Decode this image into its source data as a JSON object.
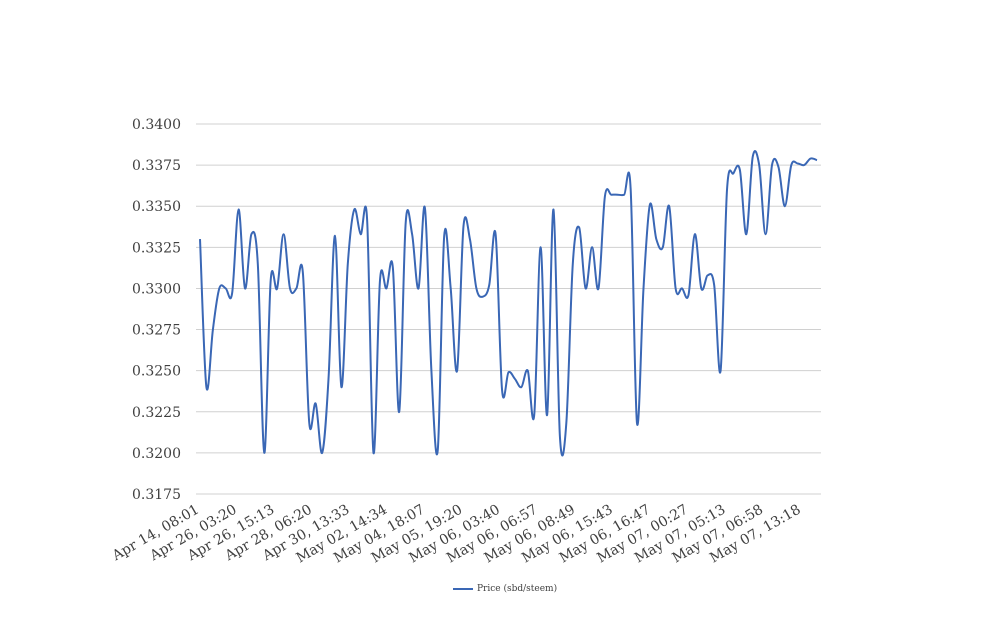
{
  "chart_data": {
    "type": "line",
    "title": "",
    "xlabel": "",
    "ylabel": "",
    "ylim": [
      0.3175,
      0.34
    ],
    "y_ticks": [
      "0.3175",
      "0.3200",
      "0.3225",
      "0.3250",
      "0.3275",
      "0.3300",
      "0.3325",
      "0.3350",
      "0.3375",
      "0.3400"
    ],
    "x_tick_labels": [
      "Apr 14, 08:01",
      "Apr 26, 03:20",
      "Apr 26, 15:13",
      "Apr 28, 06:20",
      "Apr 30, 13:33",
      "May 02, 14:34",
      "May 04, 18:07",
      "May 05, 19:20",
      "May 06, 03:40",
      "May 06, 06:57",
      "May 06, 08:49",
      "May 06, 15:43",
      "May 06, 16:47",
      "May 07, 00:27",
      "May 07, 05:13",
      "May 07, 06:58",
      "May 07, 13:18"
    ],
    "grid": true,
    "legend_position": "bottom",
    "series": [
      {
        "name": "Price (sbd/steem)",
        "color": "#3a67b5",
        "values": [
          0.333,
          0.324,
          0.3275,
          0.33,
          0.33,
          0.3297,
          0.3348,
          0.33,
          0.3333,
          0.3315,
          0.32,
          0.3305,
          0.33,
          0.3333,
          0.33,
          0.33,
          0.331,
          0.3218,
          0.323,
          0.32,
          0.3245,
          0.3332,
          0.324,
          0.3315,
          0.3348,
          0.3333,
          0.3342,
          0.32,
          0.3305,
          0.33,
          0.3313,
          0.3225,
          0.334,
          0.3333,
          0.33,
          0.3349,
          0.325,
          0.3202,
          0.3332,
          0.33,
          0.325,
          0.3338,
          0.333,
          0.33,
          0.3295,
          0.3302,
          0.3333,
          0.3238,
          0.3249,
          0.3245,
          0.324,
          0.325,
          0.3223,
          0.3325,
          0.3223,
          0.3348,
          0.321,
          0.3218,
          0.3315,
          0.3337,
          0.33,
          0.3325,
          0.33,
          0.3356,
          0.3357,
          0.3357,
          0.3357,
          0.3361,
          0.3218,
          0.33,
          0.3351,
          0.333,
          0.3325,
          0.335,
          0.33,
          0.33,
          0.3296,
          0.3333,
          0.33,
          0.3308,
          0.3302,
          0.325,
          0.336,
          0.337,
          0.3372,
          0.3333,
          0.338,
          0.3375,
          0.3333,
          0.3375,
          0.3374,
          0.335,
          0.3375,
          0.3376,
          0.3375,
          0.3379,
          0.3378
        ]
      }
    ]
  }
}
